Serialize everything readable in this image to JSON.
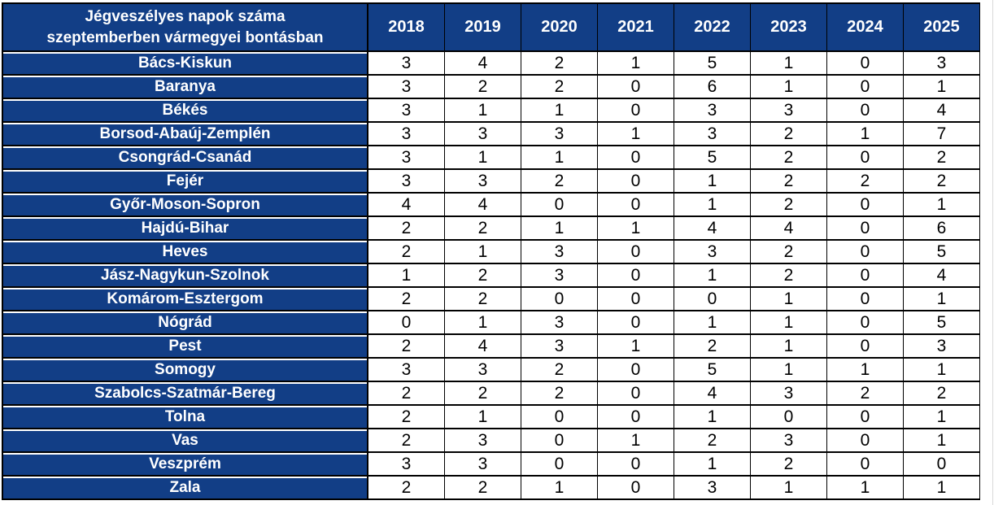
{
  "colors": {
    "header_bg": "#123e86",
    "header_text": "#ffffff",
    "value_text": "#000000",
    "border": "#000000"
  },
  "chart_data": {
    "type": "table",
    "title": "Jégveszélyes napok száma szeptemberben vármegyei bontásban",
    "title_lines": [
      "Jégveszélyes napok száma",
      "szeptemberben vármegyei bontásban"
    ],
    "columns": [
      "2018",
      "2019",
      "2020",
      "2021",
      "2022",
      "2023",
      "2024",
      "2025"
    ],
    "rows": [
      {
        "county": "Bács-Kiskun",
        "values": [
          3,
          4,
          2,
          1,
          5,
          1,
          0,
          3
        ]
      },
      {
        "county": "Baranya",
        "values": [
          3,
          2,
          2,
          0,
          6,
          1,
          0,
          1
        ]
      },
      {
        "county": "Békés",
        "values": [
          3,
          1,
          1,
          0,
          3,
          3,
          0,
          4
        ]
      },
      {
        "county": "Borsod-Abaúj-Zemplén",
        "values": [
          3,
          3,
          3,
          1,
          3,
          2,
          1,
          7
        ]
      },
      {
        "county": "Csongrád-Csanád",
        "values": [
          3,
          1,
          1,
          0,
          5,
          2,
          0,
          2
        ]
      },
      {
        "county": "Fejér",
        "values": [
          3,
          3,
          2,
          0,
          1,
          2,
          2,
          2
        ]
      },
      {
        "county": "Győr-Moson-Sopron",
        "values": [
          4,
          4,
          0,
          0,
          1,
          2,
          0,
          1
        ]
      },
      {
        "county": "Hajdú-Bihar",
        "values": [
          2,
          2,
          1,
          1,
          4,
          4,
          0,
          6
        ]
      },
      {
        "county": "Heves",
        "values": [
          2,
          1,
          3,
          0,
          3,
          2,
          0,
          5
        ]
      },
      {
        "county": "Jász-Nagykun-Szolnok",
        "values": [
          1,
          2,
          3,
          0,
          1,
          2,
          0,
          4
        ]
      },
      {
        "county": "Komárom-Esztergom",
        "values": [
          2,
          2,
          0,
          0,
          0,
          1,
          0,
          1
        ]
      },
      {
        "county": "Nógrád",
        "values": [
          0,
          1,
          3,
          0,
          1,
          1,
          0,
          5
        ]
      },
      {
        "county": "Pest",
        "values": [
          2,
          4,
          3,
          1,
          2,
          1,
          0,
          3
        ]
      },
      {
        "county": "Somogy",
        "values": [
          3,
          3,
          2,
          0,
          5,
          1,
          1,
          1
        ]
      },
      {
        "county": "Szabolcs-Szatmár-Bereg",
        "values": [
          2,
          2,
          2,
          0,
          4,
          3,
          2,
          2
        ]
      },
      {
        "county": "Tolna",
        "values": [
          2,
          1,
          0,
          0,
          1,
          0,
          0,
          1
        ]
      },
      {
        "county": "Vas",
        "values": [
          2,
          3,
          0,
          1,
          2,
          3,
          0,
          1
        ]
      },
      {
        "county": "Veszprém",
        "values": [
          3,
          3,
          0,
          0,
          1,
          2,
          0,
          0
        ]
      },
      {
        "county": "Zala",
        "values": [
          2,
          2,
          1,
          0,
          3,
          1,
          1,
          1
        ]
      }
    ]
  }
}
